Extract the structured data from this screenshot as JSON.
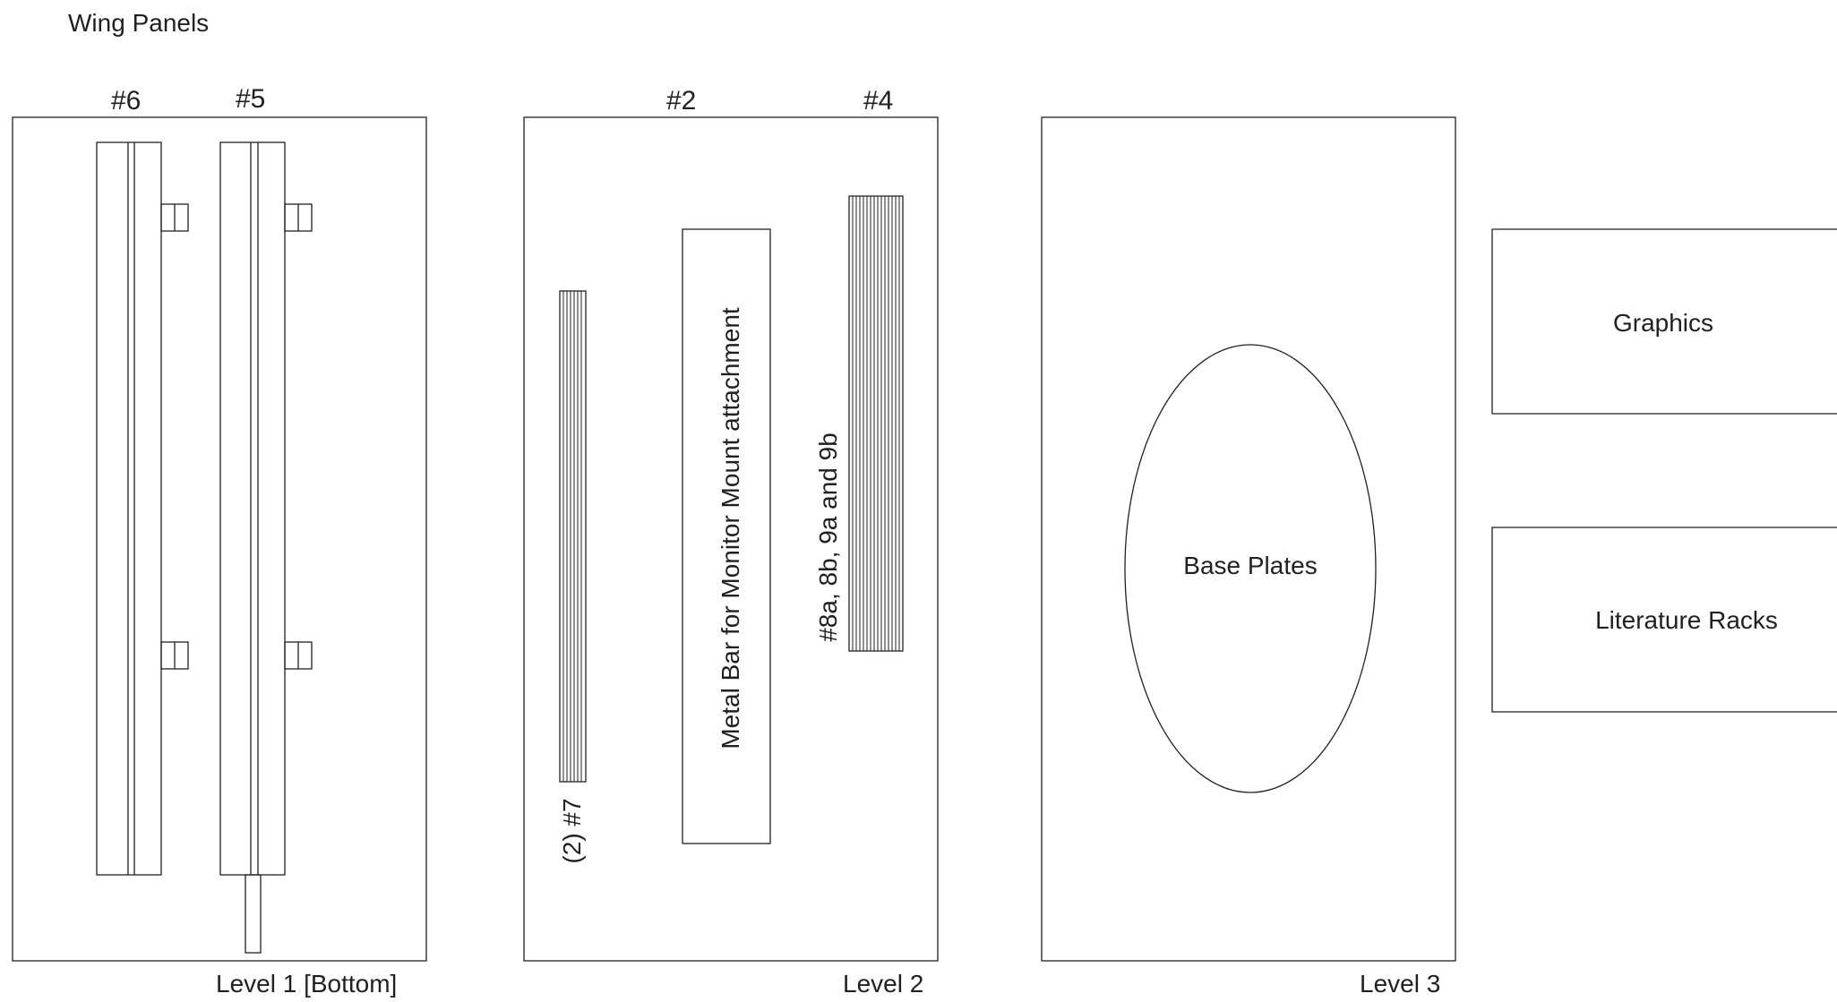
{
  "title": "Wing Panels",
  "level1": {
    "caption": "Level 1 [Bottom]",
    "labels": [
      "#6",
      "#5"
    ]
  },
  "level2": {
    "caption": "Level 2",
    "labels": [
      "#2",
      "#4"
    ],
    "bar_label": "Metal Bar for Monitor Mount attachment",
    "label_seven": "(2) #7",
    "label_eight": "#8a, 8b, 9a and 9b"
  },
  "level3": {
    "caption": "Level 3",
    "oval_label": "Base Plates"
  },
  "side_boxes": {
    "graphics": "Graphics",
    "literature": "Literature Racks"
  }
}
